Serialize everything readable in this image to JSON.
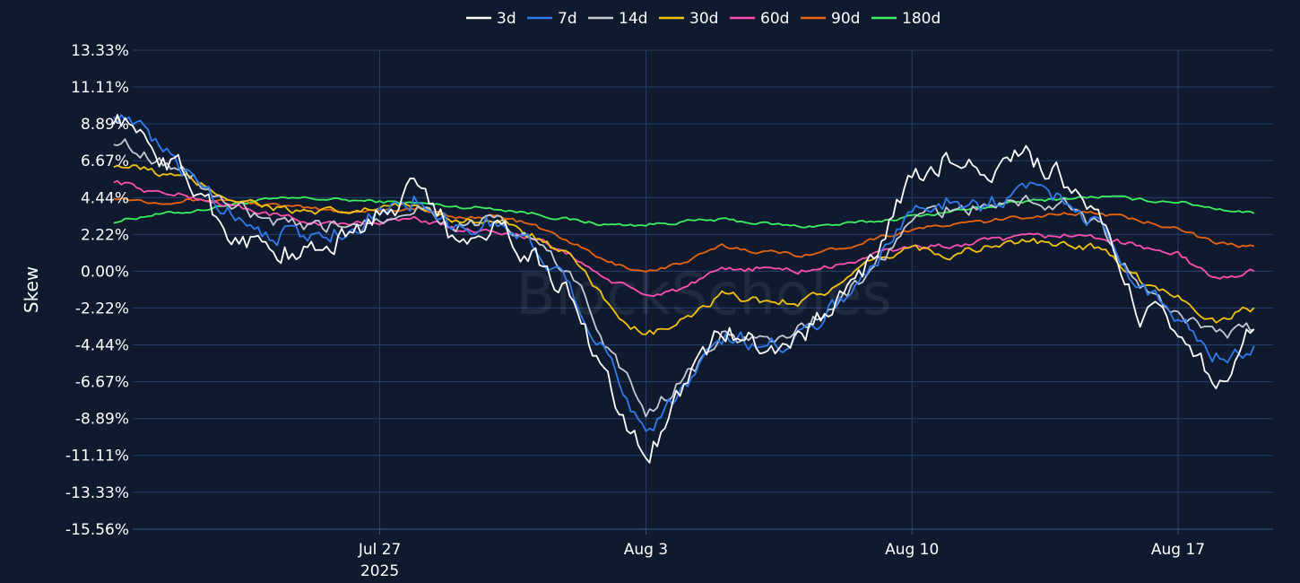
{
  "chart_data": {
    "type": "line",
    "title": "",
    "xlabel": "",
    "ylabel": "Skew",
    "watermark": "BlockScholes",
    "legend_position": "top-center",
    "grid": true,
    "ylim": [
      -15.56,
      13.33
    ],
    "y_ticks": [
      "13.33%",
      "11.11%",
      "8.89%",
      "6.67%",
      "4.44%",
      "2.22%",
      "0.00%",
      "-2.22%",
      "-4.44%",
      "-6.67%",
      "-8.89%",
      "-11.11%",
      "-13.33%",
      "-15.56%"
    ],
    "y_tick_values": [
      13.33,
      11.11,
      8.89,
      6.67,
      4.44,
      2.22,
      0.0,
      -2.22,
      -4.44,
      -6.67,
      -8.89,
      -11.11,
      -13.33,
      -15.56
    ],
    "x_range_days": [
      "2025-07-20 12:00",
      "2025-08-19 12:00"
    ],
    "x_ticks": [
      {
        "date": "2025-07-27",
        "label": "Jul 27",
        "sublabel": "2025"
      },
      {
        "date": "2025-08-03",
        "label": "Aug 3",
        "sublabel": ""
      },
      {
        "date": "2025-08-10",
        "label": "Aug 10",
        "sublabel": ""
      },
      {
        "date": "2025-08-17",
        "label": "Aug 17",
        "sublabel": ""
      }
    ],
    "x": [
      "2025-07-20",
      "2025-07-21",
      "2025-07-22",
      "2025-07-23",
      "2025-07-24",
      "2025-07-25",
      "2025-07-26",
      "2025-07-27",
      "2025-07-28",
      "2025-07-29",
      "2025-07-30",
      "2025-07-31",
      "2025-08-01",
      "2025-08-02",
      "2025-08-03",
      "2025-08-04",
      "2025-08-05",
      "2025-08-06",
      "2025-08-07",
      "2025-08-08",
      "2025-08-09",
      "2025-08-10",
      "2025-08-11",
      "2025-08-12",
      "2025-08-13",
      "2025-08-14",
      "2025-08-15",
      "2025-08-16",
      "2025-08-17",
      "2025-08-18",
      "2025-08-19"
    ],
    "series": [
      {
        "name": "3d",
        "color": "#ffffff",
        "values": [
          9.5,
          7.5,
          5.5,
          2.5,
          1.5,
          1.0,
          2.0,
          3.5,
          5.0,
          2.0,
          3.0,
          1.0,
          -1.5,
          -6.5,
          -11.5,
          -7.0,
          -3.5,
          -4.5,
          -4.0,
          -2.0,
          1.0,
          5.5,
          7.0,
          5.5,
          7.0,
          5.5,
          2.5,
          -2.5,
          -3.5,
          -6.5,
          -3.5
        ]
      },
      {
        "name": "7d",
        "color": "#2f7bf0",
        "values": [
          9.8,
          7.8,
          5.8,
          3.8,
          2.5,
          2.0,
          2.5,
          3.5,
          4.5,
          2.5,
          3.0,
          1.5,
          -0.5,
          -5.5,
          -9.5,
          -7.0,
          -4.0,
          -4.5,
          -3.8,
          -2.0,
          0.5,
          3.5,
          4.5,
          4.0,
          5.0,
          4.5,
          2.5,
          -1.0,
          -2.5,
          -5.0,
          -4.5
        ]
      },
      {
        "name": "14d",
        "color": "#c4c9d2",
        "values": [
          8.0,
          7.0,
          5.8,
          4.0,
          3.0,
          2.5,
          2.8,
          3.3,
          4.0,
          2.8,
          3.0,
          1.8,
          0.0,
          -4.5,
          -8.5,
          -6.5,
          -4.0,
          -4.2,
          -3.5,
          -2.0,
          0.2,
          3.0,
          3.8,
          3.8,
          4.3,
          4.0,
          2.5,
          -1.0,
          -2.5,
          -4.0,
          -3.5
        ]
      },
      {
        "name": "30d",
        "color": "#f4c20d",
        "values": [
          6.5,
          6.0,
          5.5,
          4.5,
          4.0,
          3.5,
          3.5,
          3.8,
          4.0,
          3.2,
          3.0,
          2.2,
          0.8,
          -2.0,
          -4.0,
          -3.0,
          -1.5,
          -1.8,
          -1.8,
          -1.0,
          0.5,
          1.5,
          1.0,
          1.5,
          1.8,
          1.5,
          1.5,
          -0.5,
          -1.5,
          -3.0,
          -2.2
        ]
      },
      {
        "name": "60d",
        "color": "#ff4fb0",
        "values": [
          5.5,
          4.8,
          4.5,
          4.0,
          3.5,
          3.0,
          2.8,
          3.0,
          3.2,
          2.5,
          2.5,
          2.0,
          1.0,
          -0.5,
          -1.5,
          -1.0,
          0.0,
          0.2,
          0.0,
          0.3,
          1.0,
          1.5,
          1.5,
          1.8,
          2.0,
          2.2,
          2.0,
          1.5,
          1.0,
          -0.5,
          0.0
        ]
      },
      {
        "name": "90d",
        "color": "#e8650d",
        "values": [
          4.5,
          4.2,
          4.3,
          4.3,
          4.0,
          3.8,
          3.6,
          3.7,
          3.8,
          3.2,
          3.4,
          2.8,
          1.8,
          0.5,
          0.0,
          0.5,
          1.5,
          1.2,
          1.0,
          1.3,
          2.0,
          2.5,
          2.8,
          3.0,
          3.3,
          3.5,
          3.5,
          3.0,
          2.7,
          1.6,
          1.5
        ]
      },
      {
        "name": "180d",
        "color": "#3cf060",
        "values": [
          3.0,
          3.4,
          3.6,
          4.0,
          4.3,
          4.4,
          4.3,
          4.2,
          4.1,
          3.9,
          3.8,
          3.5,
          3.1,
          2.8,
          2.8,
          3.0,
          3.1,
          2.9,
          2.7,
          2.8,
          3.0,
          3.3,
          3.6,
          3.9,
          4.2,
          4.4,
          4.5,
          4.3,
          4.2,
          3.8,
          3.5
        ]
      }
    ]
  }
}
